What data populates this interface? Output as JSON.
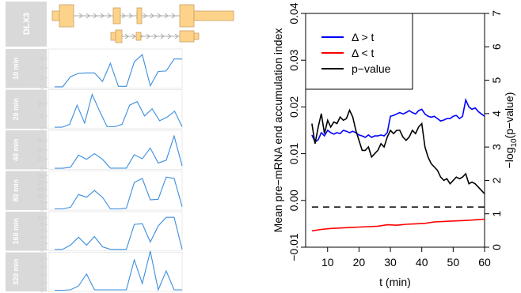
{
  "tracks": {
    "gene_label": "DLX3",
    "panels": [
      {
        "label": "10 min",
        "ticks": [
          0,
          2,
          4,
          6
        ],
        "ymax": 7,
        "values": [
          0.1,
          0.1,
          2.2,
          2.9,
          3.0,
          3.0,
          1.2,
          5.0,
          0.2,
          0.2,
          5.3,
          6.8,
          0.3,
          3.3,
          3.4,
          5.9,
          5.9
        ]
      },
      {
        "label": "20 min",
        "ticks": [
          0,
          5,
          10
        ],
        "ymax": 14,
        "values": [
          0.3,
          0.3,
          1.5,
          9.5,
          2.0,
          14.0,
          7.0,
          0.5,
          0.5,
          1.5,
          9.5,
          11.0,
          5.0,
          8.0,
          3.0,
          4.5,
          7.0,
          0.5
        ]
      },
      {
        "label": "40 min",
        "ticks": [
          0,
          10,
          20,
          30
        ],
        "ymax": 36,
        "values": [
          0.3,
          0.3,
          1.5,
          14.5,
          10.0,
          16.0,
          10.0,
          0.5,
          0.5,
          0.5,
          15.0,
          10.5,
          22.0,
          6.0,
          9.0,
          35.0,
          3.0
        ]
      },
      {
        "label": "80 min",
        "ticks": [
          0,
          5,
          10,
          15,
          20,
          25
        ],
        "ymax": 25,
        "values": [
          0.3,
          0.3,
          1.5,
          11.0,
          9.0,
          14.0,
          9.0,
          0.3,
          0.3,
          0.8,
          20.0,
          23.0,
          7.0,
          7.5,
          24.0,
          23.0,
          2.0
        ]
      },
      {
        "label": "160 min",
        "ticks": [
          0,
          2,
          4,
          6,
          8,
          10
        ],
        "ymax": 10.5,
        "values": [
          0.2,
          0.2,
          1.5,
          4.0,
          1.5,
          4.2,
          1.0,
          0.2,
          0.2,
          0.2,
          8.0,
          8.2,
          2.5,
          7.5,
          10.2,
          10.2,
          0.2
        ]
      },
      {
        "label": "320 min",
        "ticks": [
          0,
          2,
          4,
          6,
          8
        ],
        "ymax": 8.5,
        "values": [
          0.1,
          0.1,
          0.2,
          1.2,
          4.2,
          0.2,
          0.2,
          0.2,
          0.2,
          0.2,
          7.8,
          1.8,
          10.0,
          0.2,
          5.0,
          0.2,
          0.2
        ]
      }
    ]
  },
  "chart_data": {
    "type": "line",
    "xlabel": "t (min)",
    "ylabel": "Mean pre−mRNA end accumulation index",
    "ylabel2": "−log10(p−value)",
    "xlim": [
      3,
      60
    ],
    "ylim": [
      -0.01,
      0.04
    ],
    "ylim2": [
      0,
      7
    ],
    "x_ticks": [
      10,
      20,
      30,
      40,
      50,
      60
    ],
    "y_ticks": [
      -0.01,
      0.0,
      0.01,
      0.02,
      0.03,
      0.04
    ],
    "y_tick_labels": [
      "−0.01",
      "0.00",
      "0.01",
      "0.02",
      "0.03",
      "0.04"
    ],
    "y2_ticks": [
      0,
      1,
      2,
      3,
      4,
      5,
      6,
      7
    ],
    "hline": {
      "y": -0.0014,
      "style": "dashed",
      "color": "#000000"
    },
    "legend": {
      "position": "top-left",
      "entries": [
        {
          "label": "Δ > t",
          "color": "#0000ff"
        },
        {
          "label": "Δ < t",
          "color": "#ff0000"
        },
        {
          "label": "p−value",
          "color": "#000000"
        }
      ]
    },
    "series": [
      {
        "label": "Δ > t",
        "color": "#0000ff",
        "axis": "left",
        "x": [
          5,
          6,
          7,
          8,
          9,
          10,
          11,
          12,
          13,
          14,
          15,
          16,
          17,
          18,
          19,
          20,
          21,
          22,
          23,
          24,
          25,
          26,
          27,
          28,
          29,
          30,
          31,
          32,
          33,
          34,
          35,
          36,
          37,
          38,
          39,
          40,
          41,
          42,
          43,
          44,
          45,
          46,
          47,
          48,
          49,
          50,
          51,
          52,
          53,
          54,
          55,
          56,
          57,
          58,
          59,
          60
        ],
        "y": [
          0.014,
          0.0125,
          0.013,
          0.0145,
          0.0138,
          0.015,
          0.0145,
          0.0142,
          0.0145,
          0.0143,
          0.015,
          0.0148,
          0.0145,
          0.0148,
          0.0145,
          0.014,
          0.0138,
          0.0135,
          0.014,
          0.0135,
          0.0138,
          0.0138,
          0.014,
          0.0138,
          0.0145,
          0.018,
          0.0182,
          0.0185,
          0.0188,
          0.0185,
          0.0188,
          0.0192,
          0.0188,
          0.0185,
          0.0192,
          0.0195,
          0.0185,
          0.018,
          0.0178,
          0.018,
          0.0175,
          0.017,
          0.0172,
          0.0175,
          0.0175,
          0.018,
          0.0182,
          0.0175,
          0.018,
          0.0215,
          0.02,
          0.0195,
          0.0198,
          0.019,
          0.0185,
          0.018
        ]
      },
      {
        "label": "Δ < t",
        "color": "#ff0000",
        "axis": "left",
        "x": [
          5,
          8,
          11,
          14,
          17,
          20,
          23,
          26,
          29,
          32,
          35,
          38,
          41,
          44,
          47,
          50,
          53,
          56,
          58,
          60
        ],
        "y": [
          -0.0065,
          -0.0062,
          -0.006,
          -0.0059,
          -0.0058,
          -0.0057,
          -0.0056,
          -0.0055,
          -0.0052,
          -0.0053,
          -0.0051,
          -0.005,
          -0.0049,
          -0.0046,
          -0.0045,
          -0.0044,
          -0.0043,
          -0.0042,
          -0.0041,
          -0.004
        ]
      },
      {
        "label": "p−value",
        "color": "#000000",
        "axis": "right",
        "x": [
          5,
          6,
          7,
          8,
          9,
          10,
          11,
          12,
          13,
          14,
          15,
          16,
          17,
          18,
          19,
          20,
          21,
          22,
          23,
          24,
          25,
          26,
          27,
          28,
          29,
          30,
          31,
          32,
          33,
          34,
          35,
          36,
          37,
          38,
          39,
          40,
          41,
          42,
          43,
          44,
          45,
          46,
          47,
          48,
          49,
          50,
          51,
          52,
          53,
          54,
          55,
          56,
          57,
          58,
          59,
          60
        ],
        "y": [
          3.7,
          3.1,
          3.6,
          4.0,
          3.4,
          3.8,
          3.6,
          3.75,
          3.7,
          3.9,
          3.8,
          3.85,
          4.1,
          3.9,
          3.5,
          3.2,
          2.9,
          2.9,
          3.0,
          2.7,
          2.8,
          2.9,
          3.1,
          3.0,
          3.3,
          3.5,
          3.4,
          3.5,
          3.5,
          3.3,
          3.2,
          3.3,
          3.5,
          3.4,
          3.6,
          3.7,
          3.0,
          2.7,
          2.5,
          2.4,
          2.3,
          2.1,
          2.0,
          2.05,
          1.9,
          2.0,
          2.1,
          2.05,
          2.1,
          2.2,
          1.9,
          1.95,
          1.9,
          1.8,
          1.7,
          1.6
        ]
      }
    ]
  }
}
